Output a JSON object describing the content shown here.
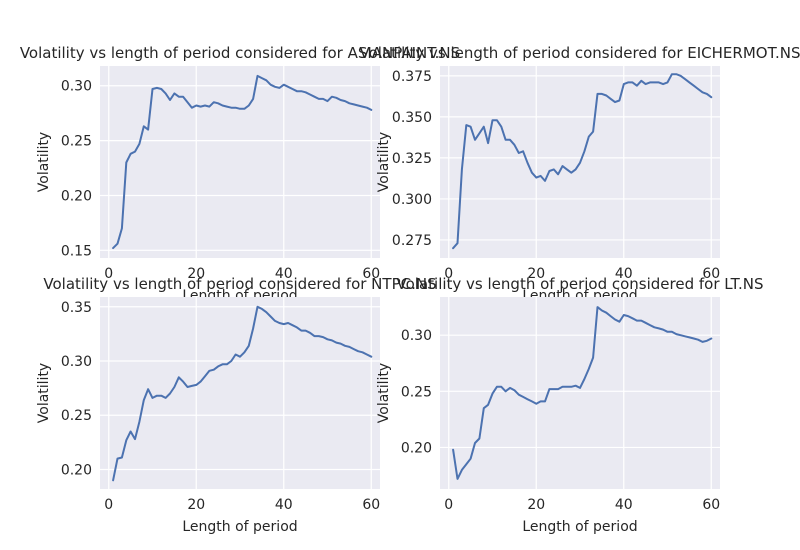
{
  "chart_data": [
    {
      "type": "line",
      "title": "Volatility vs length of period considered for ASIANPAINT.NS",
      "xlabel": "Length of period",
      "ylabel": "Volatility",
      "xlim": [
        -2,
        62
      ],
      "ylim": [
        0.143,
        0.318
      ],
      "xticks": [
        "0",
        "20",
        "40",
        "60"
      ],
      "xtick_values": [
        0,
        20,
        40,
        60
      ],
      "yticks": [
        "0.15",
        "0.20",
        "0.25",
        "0.30"
      ],
      "ytick_values": [
        0.15,
        0.2,
        0.25,
        0.3
      ],
      "grid": true,
      "series": [
        {
          "color": "#4c72b0",
          "x": [
            1,
            2,
            3,
            4,
            5,
            6,
            7,
            8,
            9,
            10,
            11,
            12,
            13,
            14,
            15,
            16,
            17,
            18,
            19,
            20,
            21,
            22,
            23,
            24,
            25,
            26,
            27,
            28,
            29,
            30,
            31,
            32,
            33,
            34,
            35,
            36,
            37,
            38,
            39,
            40,
            41,
            42,
            43,
            44,
            45,
            46,
            47,
            48,
            49,
            50,
            51,
            52,
            53,
            54,
            55,
            56,
            57,
            58,
            59,
            60
          ],
          "values": [
            0.152,
            0.156,
            0.17,
            0.23,
            0.238,
            0.24,
            0.247,
            0.263,
            0.26,
            0.297,
            0.298,
            0.297,
            0.293,
            0.287,
            0.293,
            0.29,
            0.29,
            0.285,
            0.28,
            0.282,
            0.281,
            0.282,
            0.281,
            0.285,
            0.284,
            0.282,
            0.281,
            0.28,
            0.28,
            0.279,
            0.279,
            0.282,
            0.288,
            0.309,
            0.307,
            0.305,
            0.301,
            0.299,
            0.298,
            0.301,
            0.299,
            0.297,
            0.295,
            0.295,
            0.294,
            0.292,
            0.29,
            0.288,
            0.288,
            0.286,
            0.29,
            0.289,
            0.287,
            0.286,
            0.284,
            0.283,
            0.282,
            0.281,
            0.28,
            0.278
          ]
        }
      ]
    },
    {
      "type": "line",
      "title": "Volatility vs length of period considered for EICHERMOT.NS",
      "xlabel": "Length of period",
      "ylabel": "Volatility",
      "xlim": [
        -2,
        62
      ],
      "ylim": [
        0.264,
        0.381
      ],
      "xticks": [
        "0",
        "20",
        "40",
        "60"
      ],
      "xtick_values": [
        0,
        20,
        40,
        60
      ],
      "yticks": [
        "0.275",
        "0.300",
        "0.325",
        "0.350",
        "0.375"
      ],
      "ytick_values": [
        0.275,
        0.3,
        0.325,
        0.35,
        0.375
      ],
      "grid": true,
      "series": [
        {
          "color": "#4c72b0",
          "x": [
            1,
            2,
            3,
            4,
            5,
            6,
            7,
            8,
            9,
            10,
            11,
            12,
            13,
            14,
            15,
            16,
            17,
            18,
            19,
            20,
            21,
            22,
            23,
            24,
            25,
            26,
            27,
            28,
            29,
            30,
            31,
            32,
            33,
            34,
            35,
            36,
            37,
            38,
            39,
            40,
            41,
            42,
            43,
            44,
            45,
            46,
            47,
            48,
            49,
            50,
            51,
            52,
            53,
            54,
            55,
            56,
            57,
            58,
            59,
            60
          ],
          "values": [
            0.27,
            0.273,
            0.318,
            0.345,
            0.344,
            0.336,
            0.34,
            0.344,
            0.334,
            0.348,
            0.348,
            0.344,
            0.336,
            0.336,
            0.333,
            0.328,
            0.329,
            0.322,
            0.316,
            0.313,
            0.314,
            0.311,
            0.317,
            0.318,
            0.315,
            0.32,
            0.318,
            0.316,
            0.318,
            0.322,
            0.329,
            0.338,
            0.341,
            0.364,
            0.364,
            0.363,
            0.361,
            0.359,
            0.36,
            0.37,
            0.371,
            0.371,
            0.369,
            0.372,
            0.37,
            0.371,
            0.371,
            0.371,
            0.37,
            0.371,
            0.376,
            0.376,
            0.375,
            0.373,
            0.371,
            0.369,
            0.367,
            0.365,
            0.364,
            0.362
          ]
        }
      ]
    },
    {
      "type": "line",
      "title": "Volatility vs length of period considered for NTPC.NS",
      "xlabel": "Length of period",
      "ylabel": "Volatility",
      "xlim": [
        -2,
        62
      ],
      "ylim": [
        0.182,
        0.359
      ],
      "xticks": [
        "0",
        "20",
        "40",
        "60"
      ],
      "xtick_values": [
        0,
        20,
        40,
        60
      ],
      "yticks": [
        "0.20",
        "0.25",
        "0.30",
        "0.35"
      ],
      "ytick_values": [
        0.2,
        0.25,
        0.3,
        0.35
      ],
      "grid": true,
      "series": [
        {
          "color": "#4c72b0",
          "x": [
            1,
            2,
            3,
            4,
            5,
            6,
            7,
            8,
            9,
            10,
            11,
            12,
            13,
            14,
            15,
            16,
            17,
            18,
            19,
            20,
            21,
            22,
            23,
            24,
            25,
            26,
            27,
            28,
            29,
            30,
            31,
            32,
            33,
            34,
            35,
            36,
            37,
            38,
            39,
            40,
            41,
            42,
            43,
            44,
            45,
            46,
            47,
            48,
            49,
            50,
            51,
            52,
            53,
            54,
            55,
            56,
            57,
            58,
            59,
            60
          ],
          "values": [
            0.19,
            0.21,
            0.211,
            0.227,
            0.235,
            0.228,
            0.244,
            0.264,
            0.274,
            0.266,
            0.268,
            0.268,
            0.266,
            0.27,
            0.276,
            0.285,
            0.281,
            0.276,
            0.277,
            0.278,
            0.281,
            0.286,
            0.291,
            0.292,
            0.295,
            0.297,
            0.297,
            0.3,
            0.306,
            0.304,
            0.308,
            0.314,
            0.33,
            0.35,
            0.348,
            0.345,
            0.341,
            0.337,
            0.335,
            0.334,
            0.335,
            0.333,
            0.331,
            0.328,
            0.328,
            0.326,
            0.323,
            0.323,
            0.322,
            0.32,
            0.319,
            0.317,
            0.316,
            0.314,
            0.313,
            0.311,
            0.309,
            0.308,
            0.306,
            0.304
          ]
        }
      ]
    },
    {
      "type": "line",
      "title": "Volatility vs length of period considered for LT.NS",
      "xlabel": "Length of period",
      "ylabel": "Volatility",
      "xlim": [
        -2,
        62
      ],
      "ylim": [
        0.163,
        0.334
      ],
      "xticks": [
        "0",
        "20",
        "40",
        "60"
      ],
      "xtick_values": [
        0,
        20,
        40,
        60
      ],
      "yticks": [
        "0.20",
        "0.25",
        "0.30"
      ],
      "ytick_values": [
        0.2,
        0.25,
        0.3
      ],
      "grid": true,
      "series": [
        {
          "color": "#4c72b0",
          "x": [
            1,
            2,
            3,
            4,
            5,
            6,
            7,
            8,
            9,
            10,
            11,
            12,
            13,
            14,
            15,
            16,
            17,
            18,
            19,
            20,
            21,
            22,
            23,
            24,
            25,
            26,
            27,
            28,
            29,
            30,
            31,
            32,
            33,
            34,
            35,
            36,
            37,
            38,
            39,
            40,
            41,
            42,
            43,
            44,
            45,
            46,
            47,
            48,
            49,
            50,
            51,
            52,
            53,
            54,
            55,
            56,
            57,
            58,
            59,
            60
          ],
          "values": [
            0.198,
            0.172,
            0.18,
            0.185,
            0.19,
            0.204,
            0.208,
            0.235,
            0.238,
            0.248,
            0.254,
            0.254,
            0.25,
            0.253,
            0.251,
            0.247,
            0.245,
            0.243,
            0.241,
            0.239,
            0.241,
            0.241,
            0.252,
            0.252,
            0.252,
            0.254,
            0.254,
            0.254,
            0.255,
            0.253,
            0.261,
            0.27,
            0.28,
            0.325,
            0.322,
            0.32,
            0.317,
            0.314,
            0.312,
            0.318,
            0.317,
            0.315,
            0.313,
            0.313,
            0.311,
            0.309,
            0.307,
            0.306,
            0.305,
            0.303,
            0.303,
            0.301,
            0.3,
            0.299,
            0.298,
            0.297,
            0.296,
            0.294,
            0.295,
            0.297
          ]
        }
      ]
    }
  ]
}
